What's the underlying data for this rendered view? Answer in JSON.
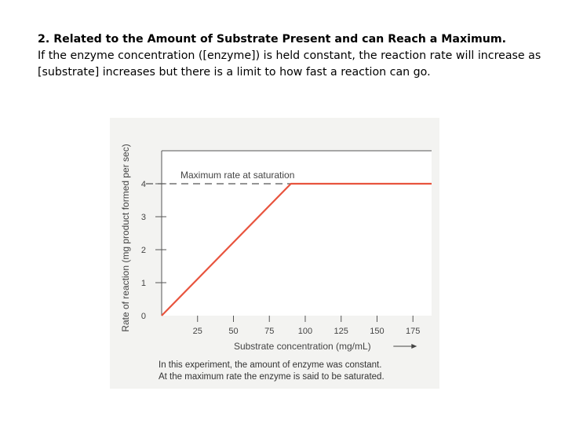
{
  "slide": {
    "heading": "2. Related to the Amount of Substrate Present and can Reach a Maximum.",
    "body": "If the enzyme concentration ([enzyme]) is held constant, the reaction rate will increase as [substrate] increases but there is a limit to how fast a reaction can go."
  },
  "figure": {
    "caption_line1": "In this experiment, the amount of enzyme was constant.",
    "caption_line2": "At the maximum rate the enzyme is said to be saturated."
  },
  "colors": {
    "line": "#e8543e",
    "axis": "#555555",
    "text": "#444444",
    "panel": "#f3f3f1",
    "plot_bg": "#ffffff"
  },
  "chart_data": {
    "type": "line",
    "title": "",
    "xlabel": "Substrate concentration (mg/mL)",
    "ylabel": "Rate of reaction (mg product formed per sec)",
    "xlim": [
      0,
      188
    ],
    "ylim": [
      0,
      5
    ],
    "x_ticks": [
      {
        "value": 25,
        "label": "25"
      },
      {
        "value": 50,
        "label": "50"
      },
      {
        "value": 75,
        "label": "75"
      },
      {
        "value": 100,
        "label": "100"
      },
      {
        "value": 125,
        "label": "125"
      },
      {
        "value": 150,
        "label": "150"
      },
      {
        "value": 175,
        "label": "175"
      }
    ],
    "y_ticks": [
      {
        "value": 0,
        "label": "0"
      },
      {
        "value": 1,
        "label": "1"
      },
      {
        "value": 2,
        "label": "2"
      },
      {
        "value": 3,
        "label": "3"
      },
      {
        "value": 4,
        "label": "4"
      }
    ],
    "series": [
      {
        "points": [
          [
            0,
            0
          ],
          [
            90,
            4
          ],
          [
            188,
            4
          ]
        ]
      }
    ],
    "annotation": {
      "text": "Maximum rate at saturation",
      "y": 4
    },
    "grid": false
  }
}
